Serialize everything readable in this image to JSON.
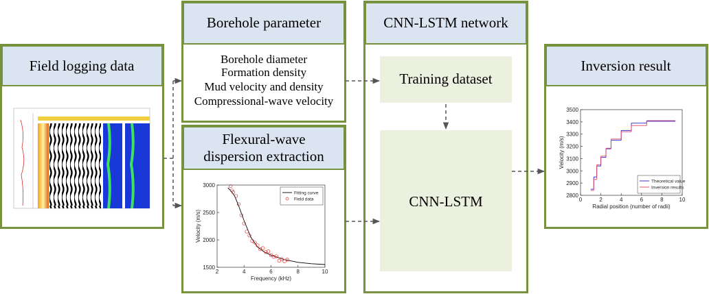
{
  "field_logging": {
    "title": "Field logging data"
  },
  "borehole_parameter": {
    "title": "Borehole parameter",
    "items": [
      "Borehole diameter",
      "Formation density",
      "Mud velocity and density",
      "Compressional-wave velocity"
    ]
  },
  "flexural": {
    "title_lines": [
      "Flexural-wave",
      "dispersion extraction"
    ],
    "chart": {
      "type": "line",
      "xlabel": "Frequency (kHz)",
      "ylabel": "Velocity (m/s)",
      "xlim": [
        2,
        10
      ],
      "xticks": [
        2,
        4,
        6,
        8,
        10
      ],
      "ylim": [
        1500,
        3000
      ],
      "yticks": [
        1500,
        2000,
        2500,
        3000
      ],
      "legend": "top-right",
      "series": [
        {
          "name": "Fitting curve",
          "type": "line",
          "color": "#000000",
          "x": [
            2.8,
            3.0,
            3.3,
            3.6,
            4.0,
            4.5,
            5.0,
            5.5,
            6.0,
            7.0,
            8.0,
            9.0,
            10.0
          ],
          "values": [
            2950,
            2900,
            2800,
            2620,
            2350,
            2050,
            1870,
            1780,
            1720,
            1640,
            1590,
            1565,
            1550
          ]
        },
        {
          "name": "Field data",
          "type": "scatter",
          "color": "#e03030",
          "x": [
            3.0,
            3.1,
            3.2,
            3.4,
            3.6,
            3.8,
            4.0,
            4.2,
            4.4,
            4.6,
            4.8,
            5.0,
            5.2,
            5.4,
            5.6,
            5.8,
            6.0,
            6.2,
            6.4,
            6.6,
            6.8,
            7.0,
            7.2
          ],
          "values": [
            2980,
            2900,
            2870,
            2800,
            2650,
            2450,
            2300,
            2150,
            2080,
            1980,
            1950,
            1900,
            1830,
            1850,
            1780,
            1790,
            1720,
            1690,
            1700,
            1620,
            1650,
            1610,
            1640
          ]
        }
      ]
    }
  },
  "cnn_lstm": {
    "title": "CNN-LSTM network",
    "training": "Training dataset",
    "model": "CNN-LSTM"
  },
  "inversion": {
    "title": "Inversion result",
    "chart": {
      "type": "step",
      "xlabel": "Radial position (number of radii)",
      "ylabel": "Velocity (m/s)",
      "xlim": [
        0,
        10
      ],
      "xticks": [
        0,
        2,
        4,
        6,
        8,
        10
      ],
      "ylim": [
        2800,
        3500
      ],
      "yticks": [
        2800,
        2900,
        3000,
        3100,
        3200,
        3300,
        3400,
        3500
      ],
      "legend": "bottom-right",
      "series": [
        {
          "name": "Theoretical value",
          "color": "#2020d0",
          "x": [
            1.0,
            1.3,
            1.6,
            2.0,
            2.5,
            3.0,
            4.0,
            5.0,
            6.5,
            9.3
          ],
          "values": [
            2850,
            2950,
            3040,
            3110,
            3180,
            3250,
            3330,
            3390,
            3405,
            3405
          ]
        },
        {
          "name": "Inversion results",
          "color": "#e04060",
          "x": [
            1.0,
            1.3,
            1.6,
            2.0,
            2.5,
            3.0,
            4.0,
            5.0,
            6.5,
            9.3
          ],
          "values": [
            2840,
            2930,
            3050,
            3120,
            3185,
            3260,
            3320,
            3370,
            3410,
            3410
          ]
        }
      ]
    }
  }
}
